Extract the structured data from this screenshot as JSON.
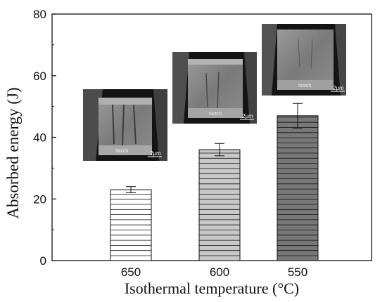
{
  "chart_data": {
    "type": "bar",
    "categories": [
      "650",
      "600",
      "550"
    ],
    "values": [
      23,
      36,
      47
    ],
    "errors": [
      1,
      2,
      4
    ],
    "xlabel": "Isothermal temperature (°C)",
    "ylabel": "Absorbed energy (J)",
    "ylim": [
      0,
      80
    ],
    "yticks": [
      "0",
      "20",
      "40",
      "60",
      "80"
    ],
    "bar_fills": [
      "#ffffff",
      "#c8c8c8",
      "#787878"
    ],
    "grid": false
  },
  "insets": [
    {
      "notch_label": "Notch",
      "scale_label": "2μm"
    },
    {
      "notch_label": "Notch",
      "scale_label": "2μm"
    },
    {
      "notch_label": "Notch",
      "scale_label": "2μm"
    }
  ]
}
